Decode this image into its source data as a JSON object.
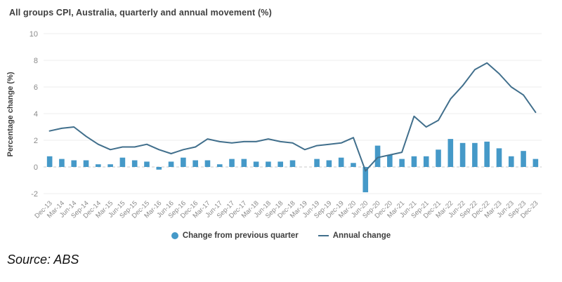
{
  "title": "All groups CPI, Australia, quarterly and annual movement (%)",
  "source_note": "Source: ABS",
  "legend": [
    {
      "label": "Change from previous quarter",
      "swatch": "dot",
      "color": "#4599c8"
    },
    {
      "label": "Annual change",
      "swatch": "line",
      "color": "#416f8c"
    }
  ],
  "chart_data": {
    "type": "combo-bar-line",
    "title": "All groups CPI, Australia, quarterly and annual movement (%)",
    "xlabel": "",
    "ylabel": "Percentage change (%)",
    "ylim": [
      -2,
      10
    ],
    "yticks": [
      -2,
      0,
      2,
      4,
      6,
      8,
      10
    ],
    "grid": "horizontal",
    "zero_line_style": "dashed",
    "legend_position": "bottom",
    "categories": [
      "Dec-13",
      "Mar-14",
      "Jun-14",
      "Sep-14",
      "Dec-14",
      "Mar-15",
      "Jun-15",
      "Sep-15",
      "Dec-15",
      "Mar-16",
      "Jun-16",
      "Sep-16",
      "Dec-16",
      "Mar-17",
      "Jun-17",
      "Sep-17",
      "Dec-17",
      "Mar-18",
      "Jun-18",
      "Sep-18",
      "Dec-18",
      "Mar-19",
      "Jun-19",
      "Sep-19",
      "Dec-19",
      "Mar-20",
      "Jun-20",
      "Sep-20",
      "Dec-20",
      "Mar-21",
      "Jun-21",
      "Sep-21",
      "Dec-21",
      "Mar-22",
      "Jun-22",
      "Sep-22",
      "Dec-22",
      "Mar-23",
      "Jun-23",
      "Sep-23",
      "Dec-23"
    ],
    "series": [
      {
        "name": "Change from previous quarter",
        "type": "bar",
        "color": "#4599c8",
        "values": [
          0.8,
          0.6,
          0.5,
          0.5,
          0.2,
          0.2,
          0.7,
          0.5,
          0.4,
          -0.2,
          0.4,
          0.7,
          0.5,
          0.5,
          0.2,
          0.6,
          0.6,
          0.4,
          0.4,
          0.4,
          0.5,
          0.0,
          0.6,
          0.5,
          0.7,
          0.3,
          -1.9,
          1.6,
          0.9,
          0.6,
          0.8,
          0.8,
          1.3,
          2.1,
          1.8,
          1.8,
          1.9,
          1.4,
          0.8,
          1.2,
          0.6
        ]
      },
      {
        "name": "Annual change",
        "type": "line",
        "color": "#416f8c",
        "values": [
          2.7,
          2.9,
          3.0,
          2.3,
          1.7,
          1.3,
          1.5,
          1.5,
          1.7,
          1.3,
          1.0,
          1.3,
          1.5,
          2.1,
          1.9,
          1.8,
          1.9,
          1.9,
          2.1,
          1.9,
          1.8,
          1.3,
          1.6,
          1.7,
          1.8,
          2.2,
          -0.3,
          0.7,
          0.9,
          1.1,
          3.8,
          3.0,
          3.5,
          5.1,
          6.1,
          7.3,
          7.8,
          7.0,
          6.0,
          5.4,
          4.1
        ]
      }
    ],
    "colors": {
      "grid": "#ececec",
      "zero_line": "#c8c8c8",
      "tick_text": "#8a8a8a",
      "axis_title_text": "#3e3e3e"
    }
  }
}
